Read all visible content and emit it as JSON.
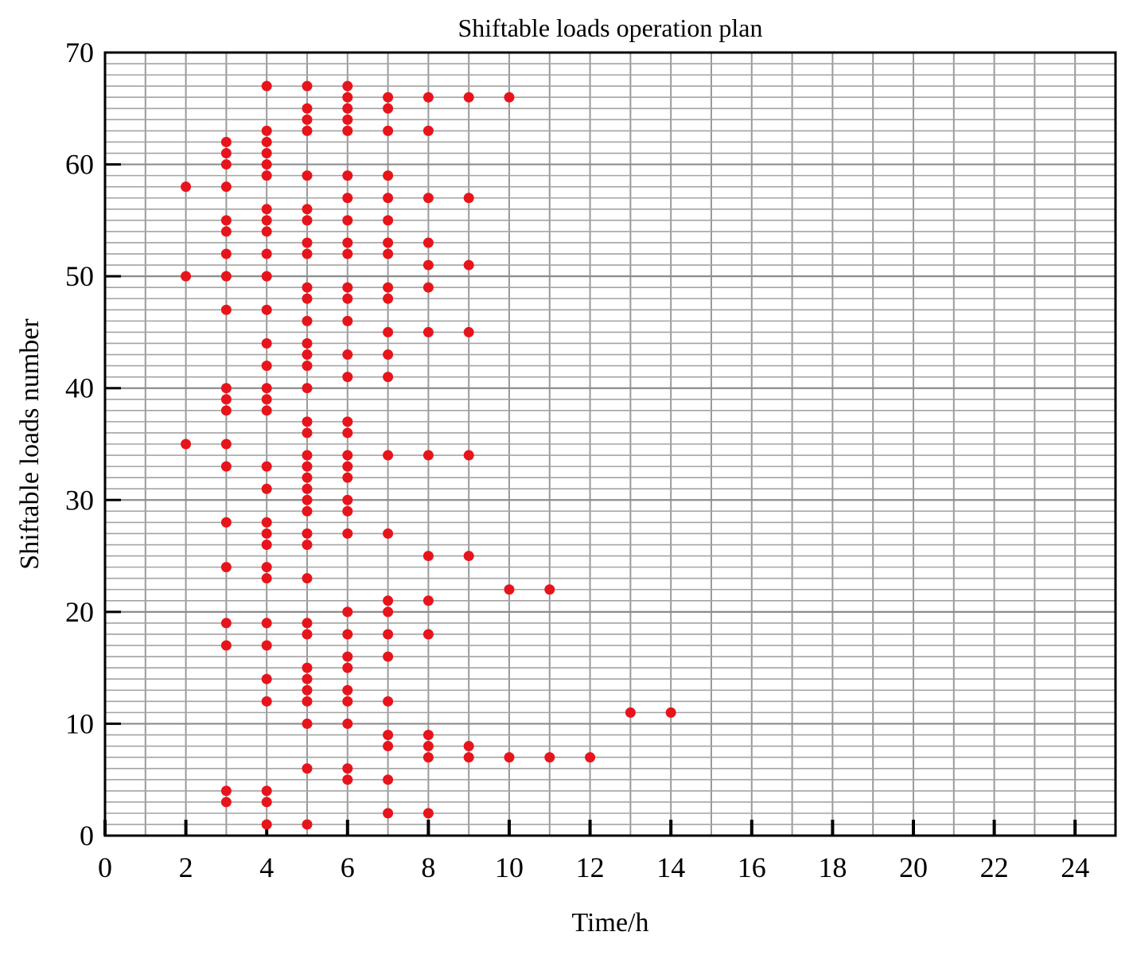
{
  "chart_data": {
    "type": "scatter",
    "title": "Shiftable loads operation plan",
    "xlabel": "Time/h",
    "ylabel": "Shiftable loads number",
    "xlim": [
      0,
      25
    ],
    "ylim": [
      0,
      70
    ],
    "x_ticks": [
      0,
      2,
      4,
      6,
      8,
      10,
      12,
      14,
      16,
      18,
      20,
      22,
      24
    ],
    "y_ticks": [
      0,
      10,
      20,
      30,
      40,
      50,
      60,
      70
    ],
    "x_tick_labels": [
      "0",
      "2",
      "4",
      "6",
      "8",
      "10",
      "12",
      "14",
      "16",
      "18",
      "20",
      "22",
      "24"
    ],
    "y_tick_labels": [
      "0",
      "10",
      "20",
      "30",
      "40",
      "50",
      "60",
      "70"
    ],
    "grid": true,
    "legend": "none",
    "marker_color": "#e8141b",
    "points": [
      [
        2,
        35
      ],
      [
        2,
        50
      ],
      [
        2,
        58
      ],
      [
        3,
        3
      ],
      [
        3,
        4
      ],
      [
        3,
        17
      ],
      [
        3,
        19
      ],
      [
        3,
        24
      ],
      [
        3,
        28
      ],
      [
        3,
        33
      ],
      [
        3,
        35
      ],
      [
        3,
        38
      ],
      [
        3,
        39
      ],
      [
        3,
        40
      ],
      [
        3,
        47
      ],
      [
        3,
        50
      ],
      [
        3,
        52
      ],
      [
        3,
        54
      ],
      [
        3,
        55
      ],
      [
        3,
        58
      ],
      [
        3,
        60
      ],
      [
        3,
        61
      ],
      [
        3,
        62
      ],
      [
        4,
        1
      ],
      [
        4,
        3
      ],
      [
        4,
        4
      ],
      [
        4,
        12
      ],
      [
        4,
        14
      ],
      [
        4,
        17
      ],
      [
        4,
        19
      ],
      [
        4,
        23
      ],
      [
        4,
        24
      ],
      [
        4,
        26
      ],
      [
        4,
        27
      ],
      [
        4,
        28
      ],
      [
        4,
        31
      ],
      [
        4,
        33
      ],
      [
        4,
        38
      ],
      [
        4,
        39
      ],
      [
        4,
        40
      ],
      [
        4,
        42
      ],
      [
        4,
        44
      ],
      [
        4,
        47
      ],
      [
        4,
        50
      ],
      [
        4,
        52
      ],
      [
        4,
        54
      ],
      [
        4,
        55
      ],
      [
        4,
        56
      ],
      [
        4,
        59
      ],
      [
        4,
        60
      ],
      [
        4,
        61
      ],
      [
        4,
        62
      ],
      [
        4,
        63
      ],
      [
        4,
        67
      ],
      [
        5,
        1
      ],
      [
        5,
        6
      ],
      [
        5,
        10
      ],
      [
        5,
        12
      ],
      [
        5,
        13
      ],
      [
        5,
        14
      ],
      [
        5,
        15
      ],
      [
        5,
        18
      ],
      [
        5,
        19
      ],
      [
        5,
        23
      ],
      [
        5,
        26
      ],
      [
        5,
        27
      ],
      [
        5,
        29
      ],
      [
        5,
        30
      ],
      [
        5,
        31
      ],
      [
        5,
        32
      ],
      [
        5,
        33
      ],
      [
        5,
        34
      ],
      [
        5,
        36
      ],
      [
        5,
        37
      ],
      [
        5,
        40
      ],
      [
        5,
        42
      ],
      [
        5,
        43
      ],
      [
        5,
        44
      ],
      [
        5,
        46
      ],
      [
        5,
        48
      ],
      [
        5,
        49
      ],
      [
        5,
        52
      ],
      [
        5,
        53
      ],
      [
        5,
        55
      ],
      [
        5,
        56
      ],
      [
        5,
        59
      ],
      [
        5,
        63
      ],
      [
        5,
        64
      ],
      [
        5,
        65
      ],
      [
        5,
        67
      ],
      [
        6,
        5
      ],
      [
        6,
        6
      ],
      [
        6,
        10
      ],
      [
        6,
        12
      ],
      [
        6,
        13
      ],
      [
        6,
        15
      ],
      [
        6,
        16
      ],
      [
        6,
        18
      ],
      [
        6,
        20
      ],
      [
        6,
        27
      ],
      [
        6,
        29
      ],
      [
        6,
        30
      ],
      [
        6,
        32
      ],
      [
        6,
        33
      ],
      [
        6,
        34
      ],
      [
        6,
        36
      ],
      [
        6,
        37
      ],
      [
        6,
        41
      ],
      [
        6,
        43
      ],
      [
        6,
        46
      ],
      [
        6,
        48
      ],
      [
        6,
        49
      ],
      [
        6,
        52
      ],
      [
        6,
        53
      ],
      [
        6,
        55
      ],
      [
        6,
        57
      ],
      [
        6,
        59
      ],
      [
        6,
        63
      ],
      [
        6,
        64
      ],
      [
        6,
        65
      ],
      [
        6,
        66
      ],
      [
        6,
        67
      ],
      [
        7,
        2
      ],
      [
        7,
        5
      ],
      [
        7,
        8
      ],
      [
        7,
        9
      ],
      [
        7,
        12
      ],
      [
        7,
        16
      ],
      [
        7,
        18
      ],
      [
        7,
        20
      ],
      [
        7,
        21
      ],
      [
        7,
        27
      ],
      [
        7,
        34
      ],
      [
        7,
        41
      ],
      [
        7,
        43
      ],
      [
        7,
        45
      ],
      [
        7,
        48
      ],
      [
        7,
        49
      ],
      [
        7,
        52
      ],
      [
        7,
        53
      ],
      [
        7,
        55
      ],
      [
        7,
        57
      ],
      [
        7,
        59
      ],
      [
        7,
        63
      ],
      [
        7,
        65
      ],
      [
        7,
        66
      ],
      [
        8,
        2
      ],
      [
        8,
        7
      ],
      [
        8,
        8
      ],
      [
        8,
        9
      ],
      [
        8,
        18
      ],
      [
        8,
        21
      ],
      [
        8,
        25
      ],
      [
        8,
        34
      ],
      [
        8,
        45
      ],
      [
        8,
        49
      ],
      [
        8,
        51
      ],
      [
        8,
        53
      ],
      [
        8,
        57
      ],
      [
        8,
        63
      ],
      [
        8,
        66
      ],
      [
        9,
        7
      ],
      [
        9,
        8
      ],
      [
        9,
        25
      ],
      [
        9,
        34
      ],
      [
        9,
        45
      ],
      [
        9,
        51
      ],
      [
        9,
        57
      ],
      [
        9,
        66
      ],
      [
        10,
        7
      ],
      [
        10,
        22
      ],
      [
        10,
        66
      ],
      [
        11,
        7
      ],
      [
        11,
        22
      ],
      [
        12,
        7
      ],
      [
        13,
        11
      ],
      [
        14,
        11
      ]
    ]
  }
}
